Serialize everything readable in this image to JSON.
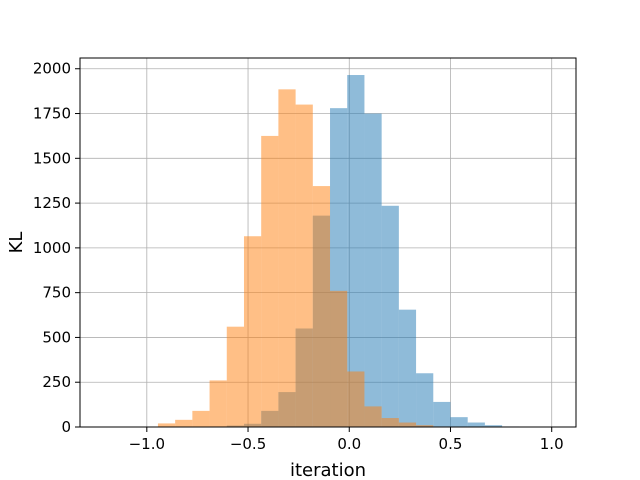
{
  "chart_data": {
    "type": "bar",
    "subtype": "overlapping-histogram",
    "title": "",
    "xlabel": "iteration",
    "ylabel": "KL",
    "xlim": [
      -1.33,
      1.12
    ],
    "ylim": [
      0,
      2060
    ],
    "grid": true,
    "x_ticks": [
      -1.0,
      -0.5,
      0.0,
      0.5,
      1.0
    ],
    "x_tick_labels": [
      "−1.0",
      "−0.5",
      "0.0",
      "0.5",
      "1.0"
    ],
    "y_ticks": [
      0,
      250,
      500,
      750,
      1000,
      1250,
      1500,
      1750,
      2000
    ],
    "y_tick_labels": [
      "0",
      "250",
      "500",
      "750",
      "1000",
      "1250",
      "1500",
      "1750",
      "2000"
    ],
    "series": [
      {
        "color": "#1f77b4",
        "opacity": 0.5,
        "bin_edges": [
          -1.2,
          -1.115,
          -1.03,
          -0.945,
          -0.86,
          -0.775,
          -0.69,
          -0.605,
          -0.52,
          -0.435,
          -0.35,
          -0.265,
          -0.18,
          -0.095,
          -0.01,
          0.075,
          0.16,
          0.245,
          0.33,
          0.415,
          0.5,
          0.585,
          0.67,
          0.755,
          0.84,
          0.925,
          1.01
        ],
        "counts": [
          0,
          0,
          0,
          0,
          0,
          1,
          3,
          8,
          18,
          90,
          195,
          550,
          1180,
          1780,
          1965,
          1750,
          1235,
          655,
          300,
          140,
          55,
          25,
          10,
          3,
          1,
          0
        ]
      },
      {
        "color": "#ff7f0e",
        "opacity": 0.5,
        "bin_edges": [
          -1.2,
          -1.115,
          -1.03,
          -0.945,
          -0.86,
          -0.775,
          -0.69,
          -0.605,
          -0.52,
          -0.435,
          -0.35,
          -0.265,
          -0.18,
          -0.095,
          -0.01,
          0.075,
          0.16,
          0.245,
          0.33,
          0.415,
          0.5,
          0.585,
          0.67,
          0.755,
          0.84,
          0.925,
          1.01
        ],
        "counts": [
          0,
          0,
          0,
          20,
          40,
          90,
          260,
          560,
          1065,
          1625,
          1885,
          1800,
          1345,
          760,
          310,
          115,
          50,
          25,
          10,
          3,
          1,
          0,
          0,
          0,
          0,
          0
        ]
      }
    ]
  }
}
